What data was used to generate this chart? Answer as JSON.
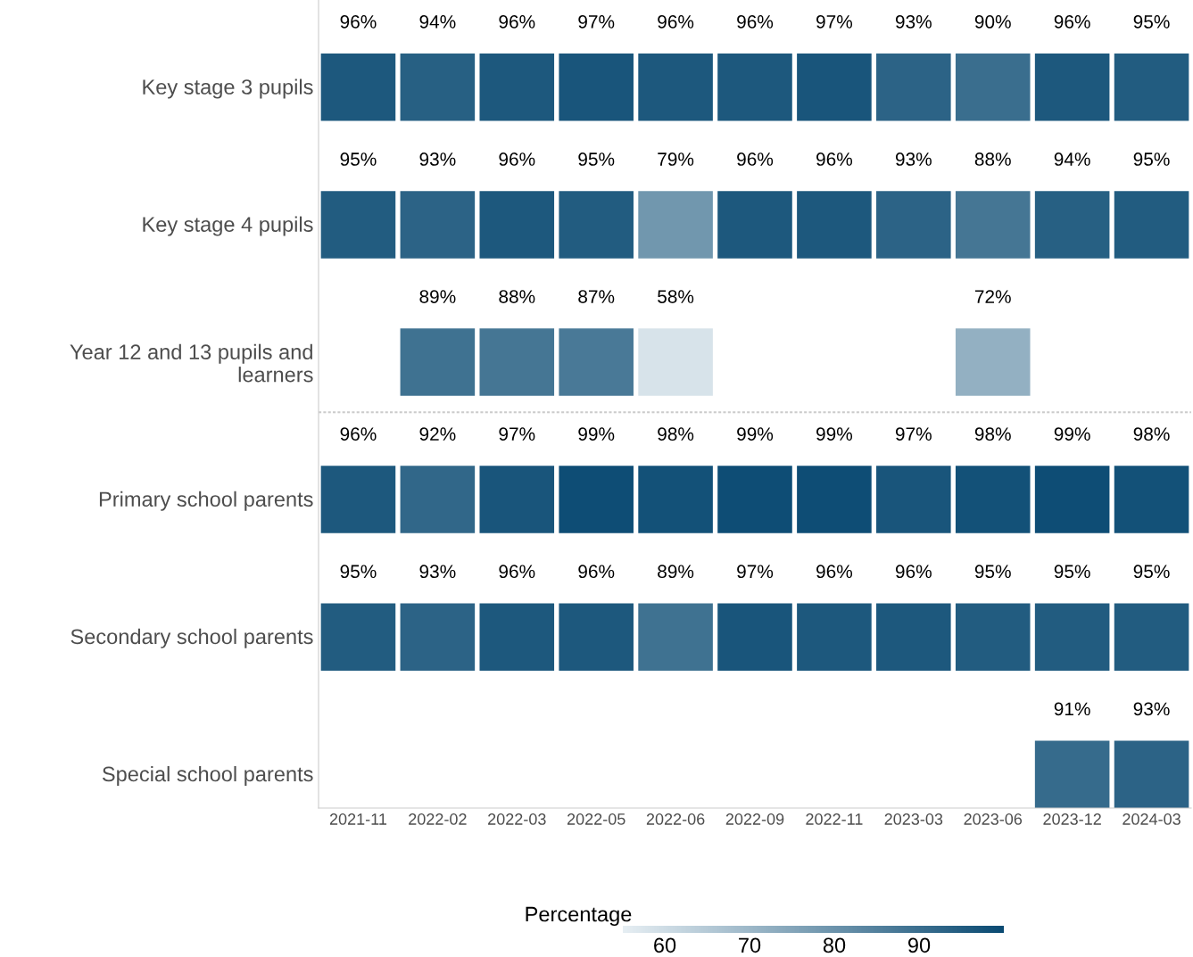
{
  "chart_data": {
    "type": "heatmap",
    "categories": [
      "2021-11",
      "2022-02",
      "2022-03",
      "2022-05",
      "2022-06",
      "2022-09",
      "2022-11",
      "2023-03",
      "2023-06",
      "2023-12",
      "2024-03"
    ],
    "y_categories": [
      "Key stage 3 pupils",
      "Key stage 4 pupils",
      "Year 12 and 13 pupils and learners",
      "Primary school parents",
      "Secondary school parents",
      "Special school parents"
    ],
    "cells": [
      [
        96,
        94,
        96,
        97,
        96,
        96,
        97,
        93,
        90,
        96,
        95
      ],
      [
        95,
        93,
        96,
        95,
        79,
        96,
        96,
        93,
        88,
        94,
        95
      ],
      [
        null,
        89,
        88,
        87,
        58,
        null,
        null,
        null,
        72,
        null,
        null
      ],
      [
        96,
        92,
        97,
        99,
        98,
        99,
        99,
        97,
        98,
        99,
        98
      ],
      [
        95,
        93,
        96,
        96,
        89,
        97,
        96,
        96,
        95,
        95,
        95
      ],
      [
        null,
        null,
        null,
        null,
        null,
        null,
        null,
        null,
        null,
        91,
        93
      ]
    ],
    "cell_labels": [
      [
        "96%",
        "94%",
        "96%",
        "97%",
        "96%",
        "96%",
        "97%",
        "93%",
        "90%",
        "96%",
        "95%"
      ],
      [
        "95%",
        "93%",
        "96%",
        "95%",
        "79%",
        "96%",
        "96%",
        "93%",
        "88%",
        "94%",
        "95%"
      ],
      [
        null,
        "89%",
        "88%",
        "87%",
        "58%",
        null,
        null,
        null,
        "72%",
        null,
        null
      ],
      [
        "96%",
        "92%",
        "97%",
        "99%",
        "98%",
        "99%",
        "99%",
        "97%",
        "98%",
        "99%",
        "98%"
      ],
      [
        "95%",
        "93%",
        "96%",
        "96%",
        "89%",
        "97%",
        "96%",
        "96%",
        "95%",
        "95%",
        "95%"
      ],
      [
        null,
        null,
        null,
        null,
        null,
        null,
        null,
        null,
        null,
        "91%",
        "93%"
      ]
    ],
    "clabel": "Percentage",
    "clim": [
      55,
      100
    ],
    "cticks": [
      60,
      70,
      80,
      90
    ]
  }
}
